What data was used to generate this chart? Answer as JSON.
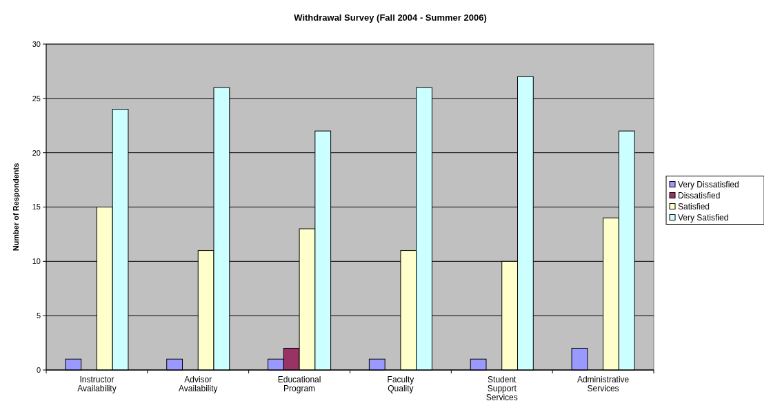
{
  "chart_data": {
    "type": "bar",
    "title": "Withdrawal Survey (Fall 2004 - Summer 2006)",
    "ylabel": "Number of Respondents",
    "categories": [
      "Instructor Availability",
      "Advisor Availability",
      "Educational Program",
      "Faculty Quality",
      "Student Support Services",
      "Administrative Services"
    ],
    "series": [
      {
        "name": "Very Dissatisfied",
        "color": "#9999ff",
        "values": [
          1,
          1,
          1,
          1,
          1,
          2
        ]
      },
      {
        "name": "Dissatisfied",
        "color": "#993366",
        "values": [
          0,
          0,
          2,
          0,
          0,
          0
        ]
      },
      {
        "name": "Satisfied",
        "color": "#ffffcc",
        "values": [
          15,
          11,
          13,
          11,
          10,
          14
        ]
      },
      {
        "name": "Very Satisfied",
        "color": "#ccffff",
        "values": [
          24,
          26,
          22,
          26,
          27,
          22
        ]
      }
    ],
    "ylim": [
      0,
      30
    ],
    "yticks": [
      0,
      5,
      10,
      15,
      20,
      25,
      30
    ],
    "grid": "y",
    "legend": "right"
  }
}
